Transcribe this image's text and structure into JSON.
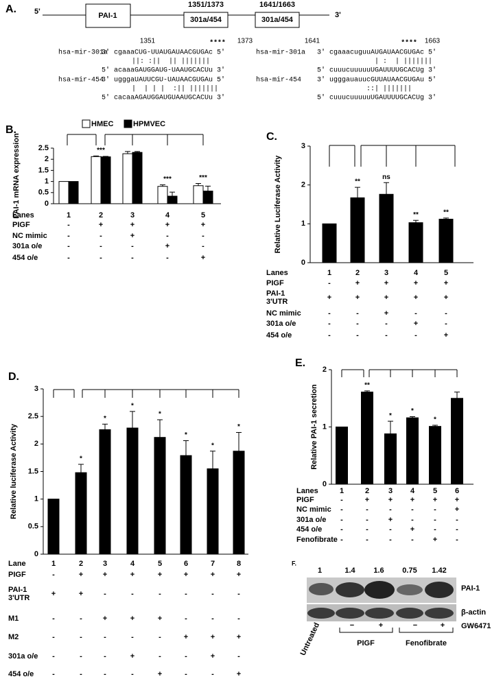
{
  "panel_a": {
    "label": "A.",
    "five_prime": "5'",
    "three_prime": "3'",
    "gene_box": "PAI-1",
    "sites": [
      {
        "position": "1351/1373",
        "label": "301a/454"
      },
      {
        "position": "1641/1663",
        "label": "301a/454"
      }
    ],
    "alignments": [
      {
        "start": 1351,
        "end": 1373,
        "stars": "****",
        "rows": [
          {
            "name": "hsa-mir-301a",
            "text": "3' cgaaaCUG-UUAUGAUAACGUGAc 5'"
          },
          {
            "text": "||: :||  || |||||||"
          },
          {
            "text": "5' acaaaGAUGGAUG-UAAUGCACUu 3'"
          },
          {
            "name": "hsa-mir-454",
            "text": "3' ugggaUAUUCGU-UAUAACGUGAu 5'"
          },
          {
            "text": "|  | | |  :|| |||||||"
          },
          {
            "text": "5' cacaaAGAUGGAUGUAAUGCACUu 3'"
          }
        ]
      },
      {
        "start": 1641,
        "end": 1663,
        "stars": "****",
        "rows": [
          {
            "name": "hsa-mir-301a",
            "text": "3' cgaaacuguuAUGAUAACGUGAc 5'"
          },
          {
            "text": "| :  | |||||||"
          },
          {
            "text": "5' cuuucuuuuuUGAUUUUGCACUg 3'"
          },
          {
            "name": "hsa-mir-454",
            "text": "3' ugggauauucGUUAUAACGUGAu 5'"
          },
          {
            "text": "::| |||||||"
          },
          {
            "text": "5' cuuucuuuuuUGAUUUUGCACUg 3'"
          }
        ]
      }
    ]
  },
  "chart_data": [
    {
      "type": "bar",
      "panel_label": "B.",
      "ylabel": "PAI-1 mRNA expression",
      "legend": "top",
      "category_label": "Lanes",
      "categories": [
        "1",
        "2",
        "3",
        "4",
        "5"
      ],
      "series": [
        {
          "name": "HMEC",
          "color": "#ffffff",
          "values": [
            1,
            2.12,
            2.25,
            0.78,
            0.81
          ],
          "errors": [
            null,
            0.03,
            0.1,
            0.07,
            0.1
          ]
        },
        {
          "name": "HPMVEC",
          "color": "#000000",
          "values": [
            1,
            2.11,
            2.31,
            0.34,
            0.57
          ],
          "errors": [
            null,
            0.02,
            0.04,
            0.18,
            0.22
          ]
        }
      ],
      "annotations": [
        null,
        "***",
        null,
        "***",
        "***"
      ],
      "ylim": [
        0,
        2.5
      ],
      "yticks": [
        0,
        0.5,
        1,
        1.5,
        2,
        2.5
      ],
      "table": [
        {
          "label": "PIGF",
          "cells": [
            "-",
            "+",
            "+",
            "+",
            "+"
          ]
        },
        {
          "label": "NC mimic",
          "cells": [
            "-",
            "-",
            "+",
            "-",
            "-"
          ]
        },
        {
          "label": "301a o/e",
          "cells": [
            "-",
            "-",
            "-",
            "+",
            "-"
          ]
        },
        {
          "label": "454 o/e",
          "cells": [
            "-",
            "-",
            "-",
            "-",
            "+"
          ]
        }
      ]
    },
    {
      "type": "bar",
      "panel_label": "C.",
      "ylabel": "Relative Luciferase Activity",
      "category_label": "Lanes",
      "categories": [
        "1",
        "2",
        "3",
        "4",
        "5"
      ],
      "series": [
        {
          "color": "#000000",
          "values": [
            1,
            1.67,
            1.76,
            1.03,
            1.12
          ],
          "errors": [
            null,
            0.27,
            0.3,
            0.06,
            0.03
          ]
        }
      ],
      "annotations": [
        null,
        "**",
        "ns",
        "**",
        "**"
      ],
      "ylim": [
        0,
        3
      ],
      "yticks": [
        0,
        1,
        2,
        3
      ],
      "table": [
        {
          "label": "PIGF",
          "cells": [
            "-",
            "+",
            "+",
            "+",
            "+"
          ]
        },
        {
          "label": [
            "PAI-1",
            "3'UTR"
          ],
          "cells": [
            "+",
            "+",
            "+",
            "+",
            "+"
          ]
        },
        {
          "label": "NC mimic",
          "cells": [
            "-",
            "-",
            "+",
            "-",
            "-"
          ]
        },
        {
          "label": "301a o/e",
          "cells": [
            "-",
            "-",
            "-",
            "+",
            "-"
          ]
        },
        {
          "label": "454 o/e",
          "cells": [
            "-",
            "-",
            "-",
            "-",
            "+"
          ]
        }
      ]
    },
    {
      "type": "bar",
      "panel_label": "D.",
      "ylabel": "Relative luciferase Activity",
      "category_label": "Lane",
      "categories": [
        "1",
        "2",
        "3",
        "4",
        "5",
        "6",
        "7",
        "8"
      ],
      "series": [
        {
          "color": "#000000",
          "values": [
            1,
            1.48,
            2.26,
            2.29,
            2.12,
            1.79,
            1.55,
            1.87
          ],
          "errors": [
            null,
            0.15,
            0.1,
            0.3,
            0.32,
            0.27,
            0.32,
            0.34
          ]
        }
      ],
      "annotations": [
        null,
        "*",
        "*",
        "*",
        "*",
        "*",
        "*",
        "*"
      ],
      "ylim": [
        0,
        3
      ],
      "yticks": [
        0,
        0.5,
        1,
        1.5,
        2,
        2.5,
        3
      ],
      "table": [
        {
          "label": "PIGF",
          "cells": [
            "-",
            "+",
            "+",
            "+",
            "+",
            "+",
            "+",
            "+"
          ]
        },
        {
          "label": [
            "PAI-1",
            "3'UTR"
          ],
          "cells": [
            "+",
            "+",
            "-",
            "-",
            "-",
            "-",
            "-",
            "-"
          ]
        },
        {
          "label": "M1",
          "cells": [
            "-",
            "-",
            "+",
            "+",
            "+",
            "-",
            "-",
            "-"
          ]
        },
        {
          "label": "M2",
          "cells": [
            "-",
            "-",
            "-",
            "-",
            "-",
            "+",
            "+",
            "+"
          ]
        },
        {
          "label": "301a o/e",
          "cells": [
            "-",
            "-",
            "-",
            "+",
            "-",
            "-",
            "+",
            "-"
          ]
        },
        {
          "label": "454 o/e",
          "cells": [
            "-",
            "-",
            "-",
            "-",
            "+",
            "-",
            "-",
            "+"
          ]
        }
      ]
    },
    {
      "type": "bar",
      "panel_label": "E.",
      "ylabel": "Relative PAI-1 secretion",
      "category_label": "Lanes",
      "categories": [
        "1",
        "2",
        "3",
        "4",
        "5",
        "6"
      ],
      "series": [
        {
          "color": "#000000",
          "values": [
            1,
            1.61,
            0.88,
            1.16,
            1.01,
            1.5
          ],
          "errors": [
            null,
            0.02,
            0.22,
            0.02,
            0.02,
            0.11
          ]
        }
      ],
      "annotations": [
        null,
        "**",
        "*",
        "*",
        "*",
        null
      ],
      "ylim": [
        0,
        2
      ],
      "yticks": [
        0,
        1,
        2
      ],
      "table": [
        {
          "label": "PIGF",
          "cells": [
            "-",
            "+",
            "+",
            "+",
            "+",
            "+"
          ]
        },
        {
          "label": "NC mimic",
          "cells": [
            "-",
            "-",
            "-",
            "-",
            "-",
            "+"
          ]
        },
        {
          "label": "301a o/e",
          "cells": [
            "-",
            "-",
            "+",
            "-",
            "-",
            "-"
          ]
        },
        {
          "label": "454 o/e",
          "cells": [
            "-",
            "-",
            "-",
            "+",
            "-",
            "-"
          ]
        },
        {
          "label": "Fenofibrate",
          "cells": [
            "-",
            "-",
            "-",
            "-",
            "+",
            "-"
          ]
        }
      ]
    }
  ],
  "panel_f": {
    "label": "F.",
    "densitometry": [
      1,
      1.4,
      1.6,
      0.75,
      1.42
    ],
    "bands": [
      "PAI-1",
      "β-actin"
    ],
    "untreated": "Untreated",
    "treatment_signs": [
      "−",
      "+",
      "−",
      "+"
    ],
    "groups": [
      "PIGF",
      "Fenofibrate"
    ],
    "inhibitor": "GW6471"
  }
}
